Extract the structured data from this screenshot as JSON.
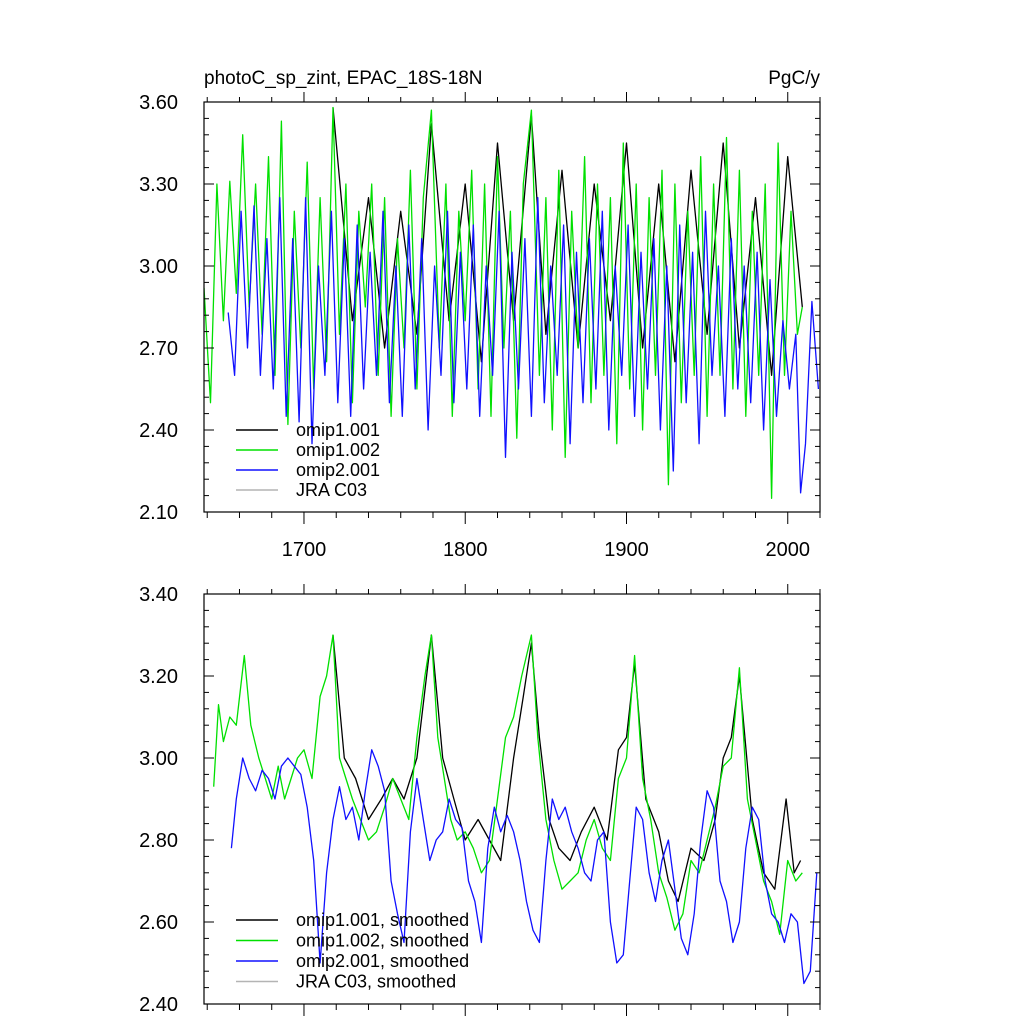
{
  "chart_data": [
    {
      "id": "raw",
      "type": "line",
      "title": "photoC_sp_zint, EPAC_18S-18N",
      "units": "PgC/y",
      "xlabel": "",
      "ylabel": "",
      "xlim": [
        1638,
        2020
      ],
      "ylim": [
        2.1,
        3.6
      ],
      "xticks": [
        1700,
        1800,
        1900,
        2000
      ],
      "xtick_labels": [
        "1700",
        "1800",
        "1900",
        "2000"
      ],
      "yticks": [
        2.1,
        2.4,
        2.7,
        3.0,
        3.3,
        3.6
      ],
      "ytick_labels": [
        "2.10",
        "2.40",
        "2.70",
        "3.00",
        "3.30",
        "3.60"
      ],
      "legend_position": "bottom-left",
      "series": [
        {
          "name": "omip1.001",
          "color": "#000000",
          "x": [
            1718,
            1730,
            1740,
            1750,
            1760,
            1770,
            1779,
            1790,
            1800,
            1810,
            1820,
            1830,
            1841,
            1850,
            1860,
            1870,
            1880,
            1890,
            1900,
            1910,
            1920,
            1930,
            1940,
            1950,
            1960,
            1970,
            1980,
            1990,
            2000,
            2009
          ],
          "y": [
            3.58,
            2.8,
            3.25,
            2.7,
            3.2,
            2.75,
            3.52,
            2.8,
            3.3,
            2.65,
            3.45,
            2.8,
            3.55,
            2.75,
            3.35,
            2.7,
            3.3,
            2.8,
            3.45,
            2.7,
            3.3,
            2.65,
            3.35,
            2.75,
            3.45,
            2.7,
            3.25,
            2.6,
            3.4,
            2.85
          ]
        },
        {
          "name": "omip1.002",
          "color": "#00e000",
          "x": [
            1638,
            1642,
            1646,
            1650,
            1654,
            1658,
            1662,
            1666,
            1670,
            1674,
            1678,
            1682,
            1686,
            1690,
            1694,
            1698,
            1702,
            1706,
            1710,
            1714,
            1718,
            1722,
            1726,
            1730,
            1734,
            1738,
            1742,
            1746,
            1750,
            1754,
            1758,
            1762,
            1766,
            1770,
            1774,
            1779,
            1784,
            1788,
            1792,
            1796,
            1800,
            1804,
            1808,
            1812,
            1816,
            1820,
            1824,
            1828,
            1832,
            1836,
            1841,
            1846,
            1850,
            1854,
            1858,
            1862,
            1866,
            1870,
            1874,
            1878,
            1882,
            1886,
            1890,
            1894,
            1898,
            1902,
            1906,
            1910,
            1914,
            1918,
            1922,
            1926,
            1930,
            1934,
            1938,
            1942,
            1946,
            1950,
            1954,
            1958,
            1962,
            1966,
            1970,
            1974,
            1978,
            1982,
            1986,
            1990,
            1994,
            1998,
            2002,
            2006,
            2009
          ],
          "y": [
            2.92,
            2.5,
            3.3,
            2.8,
            3.31,
            2.9,
            3.48,
            2.85,
            3.3,
            2.75,
            3.4,
            2.6,
            3.53,
            2.42,
            3.2,
            2.7,
            3.38,
            2.55,
            3.25,
            2.65,
            3.58,
            2.75,
            3.3,
            2.5,
            3.2,
            2.85,
            3.3,
            2.6,
            3.25,
            2.45,
            3.1,
            2.7,
            3.35,
            2.55,
            3.25,
            3.57,
            2.7,
            3.3,
            2.45,
            3.2,
            2.8,
            3.35,
            2.55,
            3.3,
            2.45,
            3.4,
            2.7,
            3.2,
            2.37,
            3.3,
            3.57,
            2.6,
            3.25,
            2.4,
            3.35,
            2.3,
            3.2,
            2.7,
            3.4,
            2.5,
            3.3,
            2.6,
            3.25,
            2.35,
            3.45,
            2.55,
            3.3,
            2.4,
            3.25,
            2.6,
            3.35,
            2.2,
            3.3,
            2.5,
            3.2,
            2.6,
            3.4,
            2.45,
            3.3,
            2.6,
            3.47,
            2.55,
            3.35,
            2.45,
            3.2,
            2.6,
            3.3,
            2.15,
            3.45,
            2.6,
            3.2,
            2.75,
            2.85
          ]
        },
        {
          "name": "omip2.001",
          "color": "#1010ff",
          "x": [
            1653,
            1657,
            1661,
            1665,
            1669,
            1673,
            1677,
            1681,
            1685,
            1689,
            1693,
            1697,
            1701,
            1705,
            1709,
            1713,
            1717,
            1721,
            1725,
            1729,
            1733,
            1737,
            1741,
            1745,
            1749,
            1753,
            1757,
            1761,
            1765,
            1769,
            1773,
            1777,
            1781,
            1785,
            1789,
            1793,
            1797,
            1801,
            1805,
            1809,
            1813,
            1817,
            1821,
            1825,
            1829,
            1833,
            1837,
            1841,
            1845,
            1849,
            1853,
            1857,
            1861,
            1865,
            1869,
            1873,
            1877,
            1881,
            1885,
            1889,
            1893,
            1897,
            1901,
            1905,
            1909,
            1913,
            1917,
            1921,
            1925,
            1929,
            1933,
            1937,
            1941,
            1945,
            1949,
            1953,
            1957,
            1961,
            1965,
            1969,
            1973,
            1977,
            1981,
            1985,
            1989,
            1993,
            1997,
            2001,
            2005,
            2008,
            2011,
            2015,
            2019
          ],
          "y": [
            2.83,
            2.6,
            3.2,
            2.7,
            3.22,
            2.6,
            3.1,
            2.55,
            3.25,
            2.45,
            3.1,
            2.43,
            3.25,
            2.35,
            3.0,
            2.6,
            3.2,
            2.5,
            3.1,
            2.45,
            3.15,
            2.55,
            3.05,
            2.6,
            3.2,
            2.5,
            3.0,
            2.45,
            3.15,
            2.55,
            3.1,
            2.4,
            3.0,
            2.6,
            3.2,
            2.5,
            3.05,
            2.55,
            3.15,
            2.45,
            3.0,
            2.6,
            3.2,
            2.3,
            3.05,
            2.55,
            3.1,
            2.45,
            3.25,
            2.5,
            3.0,
            2.6,
            3.15,
            2.35,
            3.05,
            2.5,
            3.1,
            2.55,
            3.2,
            2.4,
            3.0,
            2.6,
            3.15,
            2.45,
            3.05,
            2.55,
            3.1,
            2.4,
            3.0,
            2.25,
            3.15,
            2.5,
            3.05,
            2.35,
            3.2,
            2.6,
            3.0,
            2.45,
            3.1,
            2.55,
            3.0,
            2.5,
            3.05,
            2.4,
            2.95,
            2.45,
            2.8,
            2.55,
            2.75,
            2.17,
            2.35,
            2.87,
            2.55
          ]
        },
        {
          "name": "JRA C03",
          "color": "#b4b4b4",
          "x": [],
          "y": []
        }
      ]
    },
    {
      "id": "smoothed",
      "type": "line",
      "title": "",
      "xlabel": "",
      "ylabel": "",
      "xlim": [
        1638,
        2020
      ],
      "ylim": [
        2.4,
        3.4
      ],
      "xticks": [
        1700,
        1800,
        1900,
        2000
      ],
      "xtick_labels": [],
      "yticks": [
        2.4,
        2.6,
        2.8,
        3.0,
        3.2,
        3.4
      ],
      "ytick_labels": [
        "2.40",
        "2.60",
        "2.80",
        "3.00",
        "3.20",
        "3.40"
      ],
      "legend_position": "bottom-left",
      "series": [
        {
          "name": "omip1.001, smoothed",
          "color": "#000000",
          "x": [
            1718,
            1725,
            1732,
            1740,
            1748,
            1755,
            1762,
            1770,
            1779,
            1786,
            1793,
            1800,
            1808,
            1815,
            1822,
            1830,
            1836,
            1841,
            1846,
            1852,
            1858,
            1865,
            1872,
            1880,
            1888,
            1895,
            1900,
            1905,
            1912,
            1920,
            1926,
            1932,
            1940,
            1948,
            1955,
            1960,
            1965,
            1970,
            1978,
            1985,
            1992,
            1999,
            2004,
            2008
          ],
          "y": [
            3.3,
            3.0,
            2.95,
            2.85,
            2.9,
            2.95,
            2.9,
            3.0,
            3.3,
            3.0,
            2.9,
            2.8,
            2.85,
            2.8,
            2.75,
            3.0,
            3.15,
            3.28,
            3.05,
            2.85,
            2.78,
            2.75,
            2.82,
            2.88,
            2.8,
            3.02,
            3.05,
            3.23,
            2.9,
            2.82,
            2.7,
            2.65,
            2.78,
            2.75,
            2.85,
            3.0,
            3.05,
            3.2,
            2.85,
            2.72,
            2.68,
            2.9,
            2.72,
            2.75
          ]
        },
        {
          "name": "omip1.002, smoothed",
          "color": "#00e000",
          "x": [
            1644,
            1647,
            1650,
            1654,
            1658,
            1663,
            1667,
            1672,
            1676,
            1680,
            1684,
            1688,
            1692,
            1696,
            1700,
            1705,
            1710,
            1714,
            1718,
            1722,
            1726,
            1730,
            1735,
            1740,
            1745,
            1750,
            1755,
            1760,
            1765,
            1770,
            1775,
            1779,
            1783,
            1787,
            1791,
            1795,
            1800,
            1805,
            1810,
            1815,
            1820,
            1825,
            1830,
            1835,
            1841,
            1845,
            1850,
            1855,
            1860,
            1865,
            1870,
            1875,
            1880,
            1885,
            1890,
            1895,
            1900,
            1905,
            1910,
            1915,
            1920,
            1925,
            1930,
            1935,
            1940,
            1945,
            1950,
            1955,
            1960,
            1965,
            1970,
            1975,
            1980,
            1985,
            1990,
            1995,
            2000,
            2005,
            2009
          ],
          "y": [
            2.93,
            3.13,
            3.04,
            3.1,
            3.08,
            3.25,
            3.08,
            3.0,
            2.95,
            2.9,
            2.98,
            2.9,
            2.95,
            3.0,
            3.02,
            2.95,
            3.15,
            3.2,
            3.3,
            3.0,
            2.95,
            2.9,
            2.85,
            2.8,
            2.82,
            2.88,
            2.95,
            2.9,
            2.85,
            3.05,
            3.2,
            3.3,
            3.05,
            2.95,
            2.85,
            2.8,
            2.82,
            2.78,
            2.72,
            2.75,
            2.9,
            3.05,
            3.1,
            3.2,
            3.3,
            3.05,
            2.85,
            2.75,
            2.68,
            2.7,
            2.72,
            2.8,
            2.85,
            2.78,
            2.75,
            2.95,
            3.0,
            3.25,
            2.95,
            2.85,
            2.72,
            2.66,
            2.58,
            2.62,
            2.75,
            2.72,
            2.8,
            2.88,
            2.98,
            3.0,
            3.22,
            2.9,
            2.8,
            2.7,
            2.65,
            2.57,
            2.75,
            2.7,
            2.72
          ]
        },
        {
          "name": "omip2.001, smoothed",
          "color": "#1010ff",
          "x": [
            1655,
            1658,
            1662,
            1666,
            1670,
            1674,
            1678,
            1682,
            1686,
            1690,
            1694,
            1698,
            1702,
            1706,
            1710,
            1714,
            1718,
            1722,
            1726,
            1730,
            1734,
            1738,
            1742,
            1746,
            1750,
            1754,
            1758,
            1762,
            1766,
            1770,
            1774,
            1778,
            1782,
            1786,
            1790,
            1794,
            1798,
            1802,
            1806,
            1810,
            1814,
            1818,
            1822,
            1826,
            1830,
            1834,
            1838,
            1842,
            1846,
            1850,
            1854,
            1858,
            1862,
            1866,
            1870,
            1874,
            1878,
            1882,
            1886,
            1890,
            1894,
            1898,
            1902,
            1906,
            1910,
            1914,
            1918,
            1922,
            1926,
            1930,
            1934,
            1938,
            1942,
            1946,
            1950,
            1954,
            1958,
            1962,
            1966,
            1970,
            1974,
            1978,
            1982,
            1986,
            1990,
            1994,
            1998,
            2002,
            2006,
            2010,
            2014,
            2018
          ],
          "y": [
            2.78,
            2.9,
            3.0,
            2.95,
            2.92,
            2.97,
            2.95,
            2.9,
            2.98,
            3.0,
            2.98,
            2.96,
            2.88,
            2.75,
            2.5,
            2.72,
            2.85,
            2.93,
            2.85,
            2.88,
            2.8,
            2.92,
            3.02,
            2.98,
            2.92,
            2.7,
            2.62,
            2.55,
            2.82,
            2.95,
            2.85,
            2.75,
            2.8,
            2.82,
            2.9,
            2.85,
            2.83,
            2.7,
            2.65,
            2.55,
            2.78,
            2.88,
            2.82,
            2.86,
            2.82,
            2.75,
            2.65,
            2.58,
            2.55,
            2.75,
            2.9,
            2.85,
            2.88,
            2.82,
            2.78,
            2.72,
            2.7,
            2.8,
            2.82,
            2.6,
            2.5,
            2.52,
            2.7,
            2.88,
            2.85,
            2.72,
            2.65,
            2.75,
            2.8,
            2.68,
            2.56,
            2.52,
            2.62,
            2.8,
            2.92,
            2.88,
            2.7,
            2.65,
            2.55,
            2.6,
            2.78,
            2.88,
            2.85,
            2.7,
            2.62,
            2.6,
            2.55,
            2.62,
            2.6,
            2.45,
            2.48,
            2.72
          ]
        },
        {
          "name": "JRA C03, smoothed",
          "color": "#b4b4b4",
          "x": [],
          "y": []
        }
      ]
    }
  ]
}
